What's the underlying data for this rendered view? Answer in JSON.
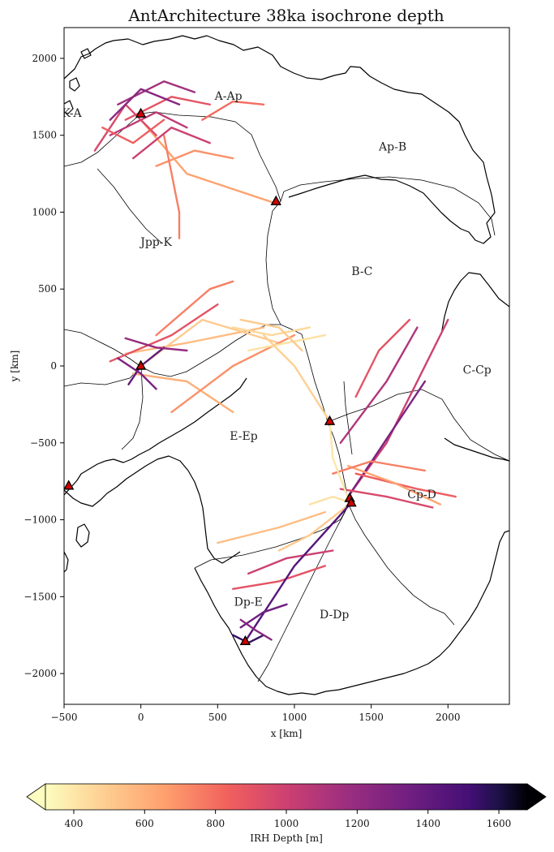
{
  "chart_data": {
    "type": "map",
    "title": "AntArchitecture 38ka isochrone depth",
    "xlabel": "x [km]",
    "ylabel": "y [km]",
    "xlim": [
      -500,
      2400
    ],
    "ylim": [
      -2200,
      2200
    ],
    "xticks": [
      -500,
      0,
      500,
      1000,
      1500,
      2000
    ],
    "yticks": [
      2000,
      1500,
      1000,
      500,
      0,
      -500,
      -1000,
      -1500,
      -2000
    ],
    "colorbar": {
      "label": "IRH Depth [m]",
      "range": [
        320,
        1680
      ],
      "ticks": [
        400,
        600,
        800,
        1000,
        1200,
        1400,
        1600
      ],
      "colormap": "magma_r",
      "extend": "both"
    },
    "regions": [
      {
        "name": "K-A",
        "x": -450,
        "y": 1620
      },
      {
        "name": "A-Ap",
        "x": 570,
        "y": 1730
      },
      {
        "name": "Ap-B",
        "x": 1640,
        "y": 1400
      },
      {
        "name": "Jpp-K",
        "x": 100,
        "y": 780
      },
      {
        "name": "B-C",
        "x": 1440,
        "y": 590
      },
      {
        "name": "C-Cp",
        "x": 2190,
        "y": -50
      },
      {
        "name": "E-Ep",
        "x": 670,
        "y": -480
      },
      {
        "name": "Cp-D",
        "x": 1830,
        "y": -860
      },
      {
        "name": "Dp-E",
        "x": 700,
        "y": -1560
      },
      {
        "name": "D-Dp",
        "x": 1260,
        "y": -1640
      }
    ],
    "ice_core_sites": [
      {
        "x": 0,
        "y": 1640
      },
      {
        "x": 880,
        "y": 1070
      },
      {
        "x": 0,
        "y": 0
      },
      {
        "x": 1230,
        "y": -360
      },
      {
        "x": 1360,
        "y": -860
      },
      {
        "x": 1370,
        "y": -890
      },
      {
        "x": -470,
        "y": -780
      },
      {
        "x": 680,
        "y": -1790
      }
    ],
    "radar_tracks": [
      {
        "points": [
          [
            -100,
            1600
          ],
          [
            200,
            1750
          ],
          [
            450,
            1700
          ]
        ],
        "depth": 900
      },
      {
        "points": [
          [
            -200,
            1500
          ],
          [
            100,
            1650
          ],
          [
            300,
            1550
          ]
        ],
        "depth": 1050
      },
      {
        "points": [
          [
            -150,
            1700
          ],
          [
            150,
            1850
          ],
          [
            350,
            1780
          ]
        ],
        "depth": 1150
      },
      {
        "points": [
          [
            100,
            1300
          ],
          [
            350,
            1400
          ],
          [
            600,
            1350
          ]
        ],
        "depth": 700
      },
      {
        "points": [
          [
            0,
            1600
          ],
          [
            300,
            1250
          ],
          [
            900,
            1050
          ]
        ],
        "depth": 650
      },
      {
        "points": [
          [
            -300,
            1400
          ],
          [
            -100,
            1700
          ],
          [
            100,
            1500
          ]
        ],
        "depth": 950
      },
      {
        "points": [
          [
            400,
            1600
          ],
          [
            600,
            1720
          ],
          [
            800,
            1700
          ]
        ],
        "depth": 800
      },
      {
        "points": [
          [
            150,
            1500
          ],
          [
            250,
            1000
          ],
          [
            250,
            830
          ]
        ],
        "depth": 750
      },
      {
        "points": [
          [
            -50,
            1350
          ],
          [
            200,
            1550
          ],
          [
            450,
            1450
          ]
        ],
        "depth": 1000
      },
      {
        "points": [
          [
            -200,
            1600
          ],
          [
            0,
            1800
          ],
          [
            250,
            1700
          ]
        ],
        "depth": 1250
      },
      {
        "points": [
          [
            -250,
            1550
          ],
          [
            -50,
            1450
          ],
          [
            150,
            1600
          ]
        ],
        "depth": 850
      },
      {
        "points": [
          [
            -100,
            80
          ],
          [
            300,
            150
          ],
          [
            800,
            250
          ]
        ],
        "depth": 550
      },
      {
        "points": [
          [
            -200,
            30
          ],
          [
            200,
            200
          ],
          [
            500,
            400
          ]
        ],
        "depth": 900
      },
      {
        "points": [
          [
            0,
            0
          ],
          [
            400,
            300
          ],
          [
            900,
            150
          ]
        ],
        "depth": 500
      },
      {
        "points": [
          [
            -50,
            -50
          ],
          [
            300,
            -100
          ],
          [
            600,
            -300
          ]
        ],
        "depth": 600
      },
      {
        "points": [
          [
            100,
            200
          ],
          [
            450,
            500
          ],
          [
            600,
            550
          ]
        ],
        "depth": 750
      },
      {
        "points": [
          [
            200,
            -300
          ],
          [
            600,
            0
          ],
          [
            1000,
            200
          ]
        ],
        "depth": 700
      },
      {
        "points": [
          [
            -80,
            -120
          ],
          [
            0,
            0
          ],
          [
            150,
            120
          ]
        ],
        "depth": 1400
      },
      {
        "points": [
          [
            -150,
            50
          ],
          [
            0,
            -50
          ],
          [
            100,
            -150
          ]
        ],
        "depth": 1300
      },
      {
        "points": [
          [
            -100,
            180
          ],
          [
            100,
            120
          ],
          [
            300,
            100
          ]
        ],
        "depth": 1200
      },
      {
        "points": [
          [
            600,
            250
          ],
          [
            850,
            200
          ],
          [
            1100,
            250
          ]
        ],
        "depth": 450
      },
      {
        "points": [
          [
            700,
            100
          ],
          [
            950,
            150
          ],
          [
            1200,
            200
          ]
        ],
        "depth": 420
      },
      {
        "points": [
          [
            650,
            300
          ],
          [
            900,
            250
          ],
          [
            1050,
            100
          ]
        ],
        "depth": 500
      },
      {
        "points": [
          [
            800,
            200
          ],
          [
            1000,
            0
          ],
          [
            1230,
            -360
          ]
        ],
        "depth": 480
      },
      {
        "points": [
          [
            1400,
            -200
          ],
          [
            1550,
            100
          ],
          [
            1750,
            300
          ]
        ],
        "depth": 900
      },
      {
        "points": [
          [
            1300,
            -500
          ],
          [
            1600,
            -100
          ],
          [
            1800,
            250
          ]
        ],
        "depth": 1100
      },
      {
        "points": [
          [
            1350,
            -850
          ],
          [
            1600,
            -500
          ],
          [
            2000,
            300
          ]
        ],
        "depth": 1000
      },
      {
        "points": [
          [
            1350,
            -850
          ],
          [
            1550,
            -550
          ],
          [
            1850,
            -100
          ]
        ],
        "depth": 1300
      },
      {
        "points": [
          [
            1400,
            -700
          ],
          [
            1800,
            -800
          ],
          [
            2050,
            -850
          ]
        ],
        "depth": 850
      },
      {
        "points": [
          [
            1350,
            -650
          ],
          [
            1650,
            -760
          ],
          [
            1950,
            -900
          ]
        ],
        "depth": 650
      },
      {
        "points": [
          [
            1250,
            -700
          ],
          [
            1500,
            -620
          ],
          [
            1850,
            -680
          ]
        ],
        "depth": 750
      },
      {
        "points": [
          [
            1300,
            -800
          ],
          [
            1600,
            -850
          ],
          [
            1900,
            -920
          ]
        ],
        "depth": 950
      },
      {
        "points": [
          [
            1230,
            -360
          ],
          [
            1250,
            -600
          ],
          [
            1350,
            -860
          ]
        ],
        "depth": 400
      },
      {
        "points": [
          [
            1100,
            -900
          ],
          [
            1250,
            -850
          ],
          [
            1370,
            -890
          ]
        ],
        "depth": 420
      },
      {
        "points": [
          [
            900,
            -1200
          ],
          [
            1100,
            -1100
          ],
          [
            1370,
            -890
          ]
        ],
        "depth": 500
      },
      {
        "points": [
          [
            500,
            -1150
          ],
          [
            900,
            -1050
          ],
          [
            1200,
            -950
          ]
        ],
        "depth": 550
      },
      {
        "points": [
          [
            700,
            -1350
          ],
          [
            950,
            -1250
          ],
          [
            1250,
            -1200
          ]
        ],
        "depth": 1000
      },
      {
        "points": [
          [
            600,
            -1450
          ],
          [
            900,
            -1400
          ],
          [
            1200,
            -1300
          ]
        ],
        "depth": 900
      },
      {
        "points": [
          [
            680,
            -1790
          ],
          [
            1000,
            -1300
          ],
          [
            1370,
            -890
          ]
        ],
        "depth": 1450
      },
      {
        "points": [
          [
            650,
            -1700
          ],
          [
            800,
            -1600
          ],
          [
            950,
            -1550
          ]
        ],
        "depth": 1350
      },
      {
        "points": [
          [
            600,
            -1750
          ],
          [
            700,
            -1800
          ],
          [
            800,
            -1750
          ]
        ],
        "depth": 1550
      },
      {
        "points": [
          [
            650,
            -1650
          ],
          [
            750,
            -1720
          ],
          [
            850,
            -1780
          ]
        ],
        "depth": 1250
      }
    ]
  }
}
